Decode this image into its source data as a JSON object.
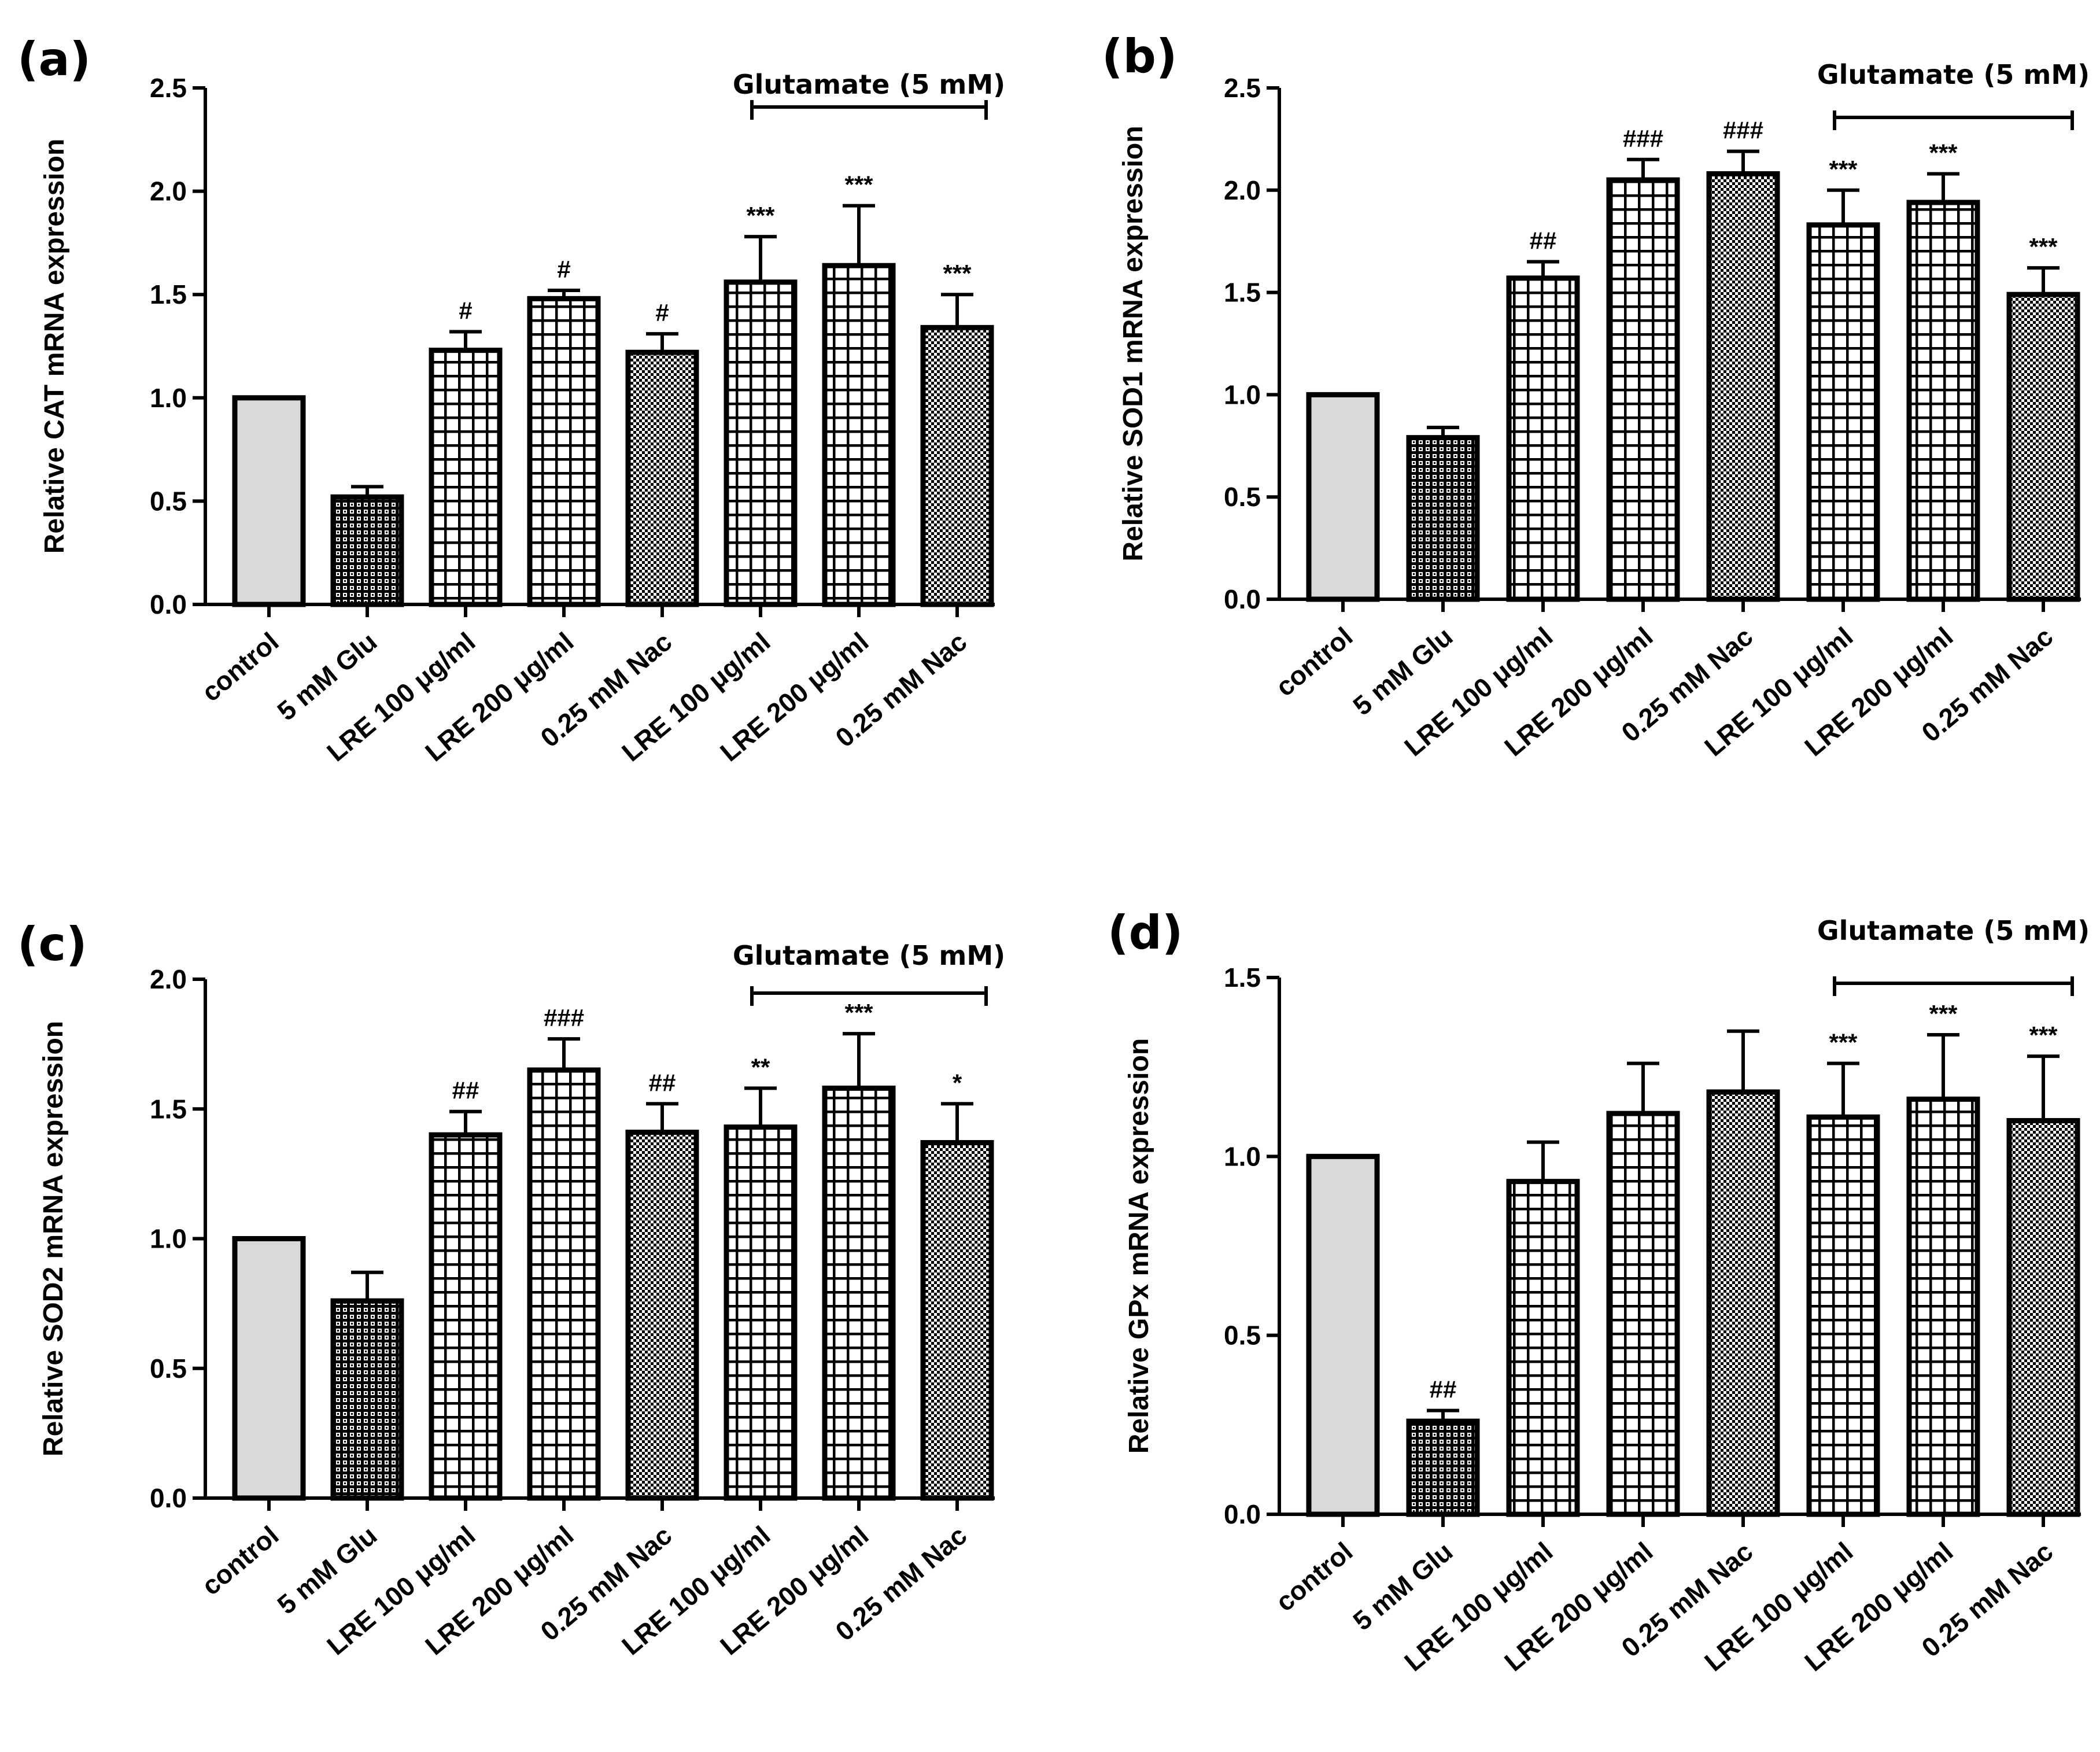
{
  "chart_data": [
    {
      "type": "bar",
      "panel": "(a)",
      "ylabel": "Relative CAT mRNA expression",
      "ylim": [
        0,
        2.5
      ],
      "yticks": [
        0.0,
        0.5,
        1.0,
        1.5,
        2.0,
        2.5
      ],
      "ytick_labels": [
        "0.0",
        "0.5",
        "1.0",
        "1.5",
        "2.0",
        "2.5"
      ],
      "categories": [
        "control",
        "5 mM Glu",
        "LRE 100 μg/ml",
        "LRE 200 μg/ml",
        "0.25 mM Nac",
        "LRE 100 μg/ml",
        "LRE 200 μg/ml",
        "0.25 mM Nac"
      ],
      "values": [
        1.0,
        0.52,
        1.23,
        1.48,
        1.22,
        1.56,
        1.64,
        1.34
      ],
      "errors": [
        0.0,
        0.05,
        0.09,
        0.04,
        0.09,
        0.22,
        0.29,
        0.16
      ],
      "significance": [
        "",
        "",
        "#",
        "#",
        "#",
        "***",
        "***",
        "***"
      ],
      "patterns": [
        "gray",
        "dots",
        "grid",
        "grid",
        "check",
        "grid",
        "grid",
        "check"
      ],
      "group_label": "Glutamate (5 mM)",
      "group_range": [
        5,
        7
      ]
    },
    {
      "type": "bar",
      "panel": "(b)",
      "ylabel": "Relative SOD1 mRNA expression",
      "ylim": [
        0,
        2.5
      ],
      "yticks": [
        0.0,
        0.5,
        1.0,
        1.5,
        2.0,
        2.5
      ],
      "ytick_labels": [
        "0.0",
        "0.5",
        "1.0",
        "1.5",
        "2.0",
        "2.5"
      ],
      "categories": [
        "control",
        "5 mM Glu",
        "LRE 100 μg/ml",
        "LRE 200 μg/ml",
        "0.25 mM Nac",
        "LRE 100 μg/ml",
        "LRE 200 μg/ml",
        "0.25 mM Nac"
      ],
      "values": [
        1.0,
        0.79,
        1.57,
        2.05,
        2.08,
        1.83,
        1.94,
        1.49
      ],
      "errors": [
        0.0,
        0.05,
        0.08,
        0.1,
        0.11,
        0.17,
        0.14,
        0.13
      ],
      "significance": [
        "",
        "",
        "##",
        "###",
        "###",
        "***",
        "***",
        "***"
      ],
      "patterns": [
        "gray",
        "dots",
        "grid",
        "grid",
        "check",
        "grid",
        "grid",
        "check"
      ],
      "group_label": "Glutamate (5 mM)",
      "group_range": [
        5,
        7
      ]
    },
    {
      "type": "bar",
      "panel": "(c)",
      "ylabel": "Relative SOD2 mRNA expression",
      "ylim": [
        0,
        2.0
      ],
      "yticks": [
        0.0,
        0.5,
        1.0,
        1.5,
        2.0
      ],
      "ytick_labels": [
        "0.0",
        "0.5",
        "1.0",
        "1.5",
        "2.0"
      ],
      "categories": [
        "control",
        "5 mM Glu",
        "LRE 100 μg/ml",
        "LRE 200 μg/ml",
        "0.25 mM Nac",
        "LRE 100 μg/ml",
        "LRE 200 μg/ml",
        "0.25 mM Nac"
      ],
      "values": [
        1.0,
        0.76,
        1.4,
        1.65,
        1.41,
        1.43,
        1.58,
        1.37
      ],
      "errors": [
        0.0,
        0.11,
        0.09,
        0.12,
        0.11,
        0.15,
        0.21,
        0.15
      ],
      "significance": [
        "",
        "",
        "##",
        "###",
        "##",
        "**",
        "***",
        "*"
      ],
      "patterns": [
        "gray",
        "dots",
        "grid",
        "grid",
        "check",
        "grid",
        "grid",
        "check"
      ],
      "group_label": "Glutamate (5 mM)",
      "group_range": [
        5,
        7
      ]
    },
    {
      "type": "bar",
      "panel": "(d)",
      "ylabel": "Relative GPx mRNA expression",
      "ylim": [
        0,
        1.5
      ],
      "yticks": [
        0.0,
        0.5,
        1.0,
        1.5
      ],
      "ytick_labels": [
        "0.0",
        "0.5",
        "1.0",
        "1.5"
      ],
      "categories": [
        "control",
        "5 mM Glu",
        "LRE 100 μg/ml",
        "LRE 200 μg/ml",
        "0.25 mM Nac",
        "LRE 100 μg/ml",
        "LRE 200 μg/ml",
        "0.25 mM Nac"
      ],
      "values": [
        1.0,
        0.26,
        0.93,
        1.12,
        1.18,
        1.11,
        1.16,
        1.1
      ],
      "errors": [
        0.0,
        0.03,
        0.11,
        0.14,
        0.17,
        0.15,
        0.18,
        0.18
      ],
      "significance": [
        "",
        "##",
        "",
        "",
        "",
        "***",
        "***",
        "***"
      ],
      "patterns": [
        "gray",
        "dots",
        "grid",
        "grid",
        "check",
        "grid",
        "grid",
        "check"
      ],
      "group_label": "Glutamate (5 mM)",
      "group_range": [
        5,
        7
      ]
    }
  ],
  "colors": {
    "control_fill": "#d9d9d9",
    "ink": "#000000",
    "background": "#ffffff"
  }
}
